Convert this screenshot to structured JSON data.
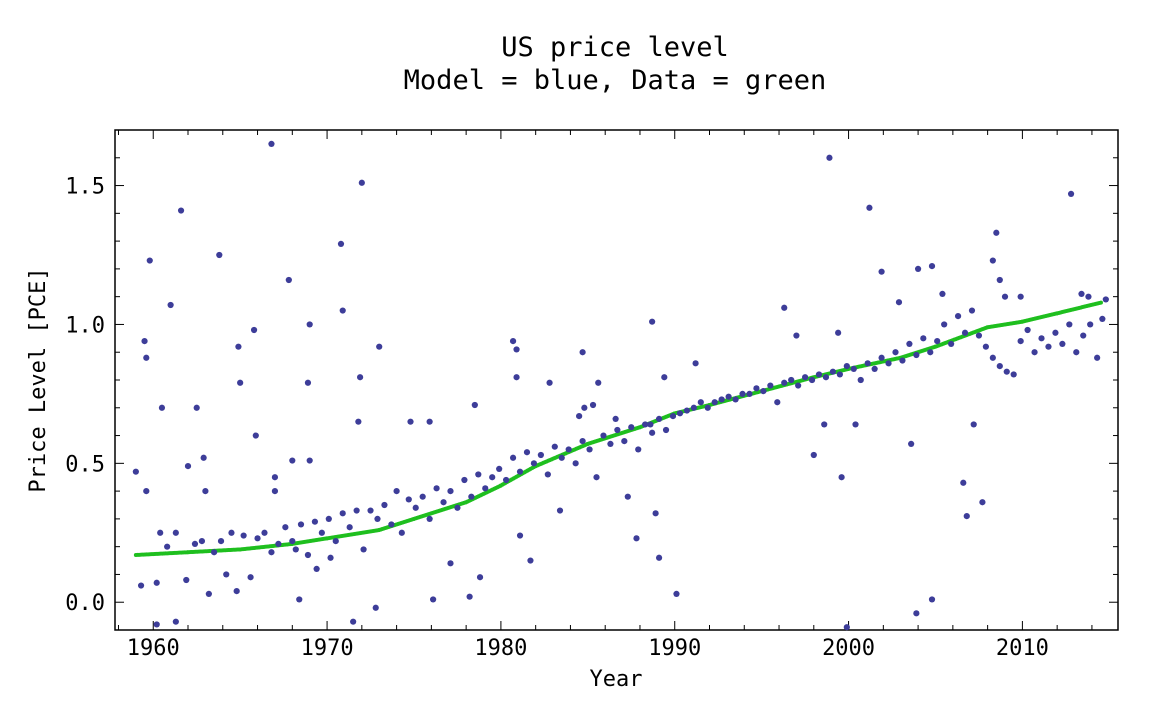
{
  "chart_data": {
    "type": "scatter",
    "title": "US price level",
    "subtitle": "Model = blue, Data = green",
    "xlabel": "Year",
    "ylabel": "Price Level [PCE]",
    "xlim": [
      1957.8,
      2015.5
    ],
    "ylim": [
      -0.1,
      1.7
    ],
    "x_ticks": [
      1960,
      1970,
      1980,
      1990,
      2000,
      2010
    ],
    "x_tick_labels": [
      "1960",
      "1970",
      "1980",
      "1990",
      "2000",
      "2010"
    ],
    "y_ticks": [
      0.0,
      0.5,
      1.0,
      1.5
    ],
    "y_tick_labels": [
      "0.0",
      "0.5",
      "1.0",
      "1.5"
    ],
    "grid": false,
    "colors": {
      "model": "#3d3d99",
      "data": "#1fbf1f"
    },
    "series": [
      {
        "style": "points",
        "color": "#3d3d99",
        "points": [
          [
            1959.0,
            0.47
          ],
          [
            1959.5,
            0.94
          ],
          [
            1959.6,
            0.88
          ],
          [
            1959.8,
            1.23
          ],
          [
            1959.6,
            0.4
          ],
          [
            1960.5,
            0.7
          ],
          [
            1961.0,
            1.07
          ],
          [
            1961.6,
            1.41
          ],
          [
            1962.0,
            0.49
          ],
          [
            1962.5,
            0.7
          ],
          [
            1962.9,
            0.52
          ],
          [
            1963.0,
            0.4
          ],
          [
            1963.8,
            1.25
          ],
          [
            1964.9,
            0.92
          ],
          [
            1965.0,
            0.79
          ],
          [
            1965.9,
            0.6
          ],
          [
            1965.8,
            0.98
          ],
          [
            1966.8,
            1.65
          ],
          [
            1967.0,
            0.45
          ],
          [
            1967.0,
            0.4
          ],
          [
            1967.8,
            1.16
          ],
          [
            1968.0,
            0.51
          ],
          [
            1969.0,
            1.0
          ],
          [
            1968.9,
            0.79
          ],
          [
            1969.0,
            0.51
          ],
          [
            1970.8,
            1.29
          ],
          [
            1970.9,
            1.05
          ],
          [
            1972.0,
            1.51
          ],
          [
            1971.9,
            0.81
          ],
          [
            1971.8,
            0.65
          ],
          [
            1973.0,
            0.92
          ],
          [
            1972.8,
            -0.02
          ],
          [
            1968.2,
            0.19
          ],
          [
            1968.4,
            0.01
          ],
          [
            1969.4,
            0.12
          ],
          [
            1970.2,
            0.16
          ],
          [
            1971.5,
            -0.07
          ],
          [
            1960.2,
            -0.08
          ],
          [
            1961.3,
            -0.07
          ],
          [
            1960.2,
            0.07
          ],
          [
            1974.8,
            0.65
          ],
          [
            1975.9,
            0.65
          ],
          [
            1977.1,
            0.14
          ],
          [
            1976.1,
            0.01
          ],
          [
            1978.2,
            0.02
          ],
          [
            1978.5,
            0.71
          ],
          [
            1978.8,
            0.09
          ],
          [
            1980.7,
            0.94
          ],
          [
            1980.9,
            0.91
          ],
          [
            1980.9,
            0.81
          ],
          [
            1981.1,
            0.24
          ],
          [
            1981.7,
            0.15
          ],
          [
            1982.8,
            0.79
          ],
          [
            1983.4,
            0.33
          ],
          [
            1984.5,
            0.67
          ],
          [
            1984.7,
            0.9
          ],
          [
            1984.8,
            0.7
          ],
          [
            1985.3,
            0.71
          ],
          [
            1985.6,
            0.79
          ],
          [
            1986.6,
            0.66
          ],
          [
            1987.3,
            0.38
          ],
          [
            1987.8,
            0.23
          ],
          [
            1988.6,
            0.64
          ],
          [
            1988.7,
            1.01
          ],
          [
            1989.1,
            0.16
          ],
          [
            1988.9,
            0.32
          ],
          [
            1990.1,
            0.03
          ],
          [
            1989.4,
            0.81
          ],
          [
            1991.2,
            0.86
          ],
          [
            1996.3,
            1.06
          ],
          [
            1997.0,
            0.96
          ],
          [
            1998.0,
            0.53
          ],
          [
            1998.6,
            0.64
          ],
          [
            1998.9,
            1.6
          ],
          [
            1999.4,
            0.97
          ],
          [
            1999.6,
            0.45
          ],
          [
            1999.9,
            -0.09
          ],
          [
            2000.4,
            0.64
          ],
          [
            2001.2,
            1.42
          ],
          [
            2001.9,
            1.19
          ],
          [
            2002.9,
            1.08
          ],
          [
            2003.6,
            0.57
          ],
          [
            2003.9,
            -0.04
          ],
          [
            2004.8,
            0.01
          ],
          [
            2004.8,
            1.21
          ],
          [
            2004.0,
            1.2
          ],
          [
            2005.4,
            1.11
          ],
          [
            2006.6,
            0.43
          ],
          [
            2006.8,
            0.31
          ],
          [
            2007.2,
            0.64
          ],
          [
            2007.7,
            0.36
          ],
          [
            2008.3,
            1.23
          ],
          [
            2008.5,
            1.33
          ],
          [
            2008.7,
            1.16
          ],
          [
            2009.0,
            1.1
          ],
          [
            2009.9,
            1.1
          ],
          [
            2012.8,
            1.47
          ],
          [
            2013.4,
            1.11
          ],
          [
            2013.8,
            1.1
          ],
          [
            1959.3,
            0.06
          ],
          [
            1960.4,
            0.25
          ],
          [
            1960.8,
            0.2
          ],
          [
            1961.3,
            0.25
          ],
          [
            1961.9,
            0.08
          ],
          [
            1962.4,
            0.21
          ],
          [
            1962.8,
            0.22
          ],
          [
            1963.2,
            0.03
          ],
          [
            1963.5,
            0.18
          ],
          [
            1963.9,
            0.22
          ],
          [
            1964.2,
            0.1
          ],
          [
            1964.5,
            0.25
          ],
          [
            1964.8,
            0.04
          ],
          [
            1965.2,
            0.24
          ],
          [
            1965.6,
            0.09
          ],
          [
            1966.0,
            0.23
          ],
          [
            1966.4,
            0.25
          ],
          [
            1966.8,
            0.18
          ],
          [
            1967.2,
            0.21
          ],
          [
            1967.6,
            0.27
          ],
          [
            1968.0,
            0.22
          ],
          [
            1968.5,
            0.28
          ],
          [
            1968.9,
            0.17
          ],
          [
            1969.3,
            0.29
          ],
          [
            1969.7,
            0.25
          ],
          [
            1970.1,
            0.3
          ],
          [
            1970.5,
            0.22
          ],
          [
            1970.9,
            0.32
          ],
          [
            1971.3,
            0.27
          ],
          [
            1971.7,
            0.33
          ],
          [
            1972.1,
            0.19
          ],
          [
            1972.5,
            0.33
          ],
          [
            1972.9,
            0.3
          ],
          [
            1973.3,
            0.35
          ],
          [
            1973.7,
            0.28
          ],
          [
            1974.0,
            0.4
          ],
          [
            1974.3,
            0.25
          ],
          [
            1974.7,
            0.37
          ],
          [
            1975.1,
            0.34
          ],
          [
            1975.5,
            0.38
          ],
          [
            1975.9,
            0.3
          ],
          [
            1976.3,
            0.41
          ],
          [
            1976.7,
            0.36
          ],
          [
            1977.1,
            0.4
          ],
          [
            1977.5,
            0.34
          ],
          [
            1977.9,
            0.44
          ],
          [
            1978.3,
            0.38
          ],
          [
            1978.7,
            0.46
          ],
          [
            1979.1,
            0.41
          ],
          [
            1979.5,
            0.45
          ],
          [
            1979.9,
            0.48
          ],
          [
            1980.3,
            0.44
          ],
          [
            1980.7,
            0.52
          ],
          [
            1981.1,
            0.47
          ],
          [
            1981.5,
            0.54
          ],
          [
            1981.9,
            0.5
          ],
          [
            1982.3,
            0.53
          ],
          [
            1982.7,
            0.46
          ],
          [
            1983.1,
            0.56
          ],
          [
            1983.5,
            0.52
          ],
          [
            1983.9,
            0.55
          ],
          [
            1984.3,
            0.5
          ],
          [
            1984.7,
            0.58
          ],
          [
            1985.1,
            0.55
          ],
          [
            1985.5,
            0.45
          ],
          [
            1985.9,
            0.6
          ],
          [
            1986.3,
            0.57
          ],
          [
            1986.7,
            0.62
          ],
          [
            1987.1,
            0.58
          ],
          [
            1987.5,
            0.63
          ],
          [
            1987.9,
            0.55
          ],
          [
            1988.3,
            0.64
          ],
          [
            1988.7,
            0.61
          ],
          [
            1989.1,
            0.66
          ],
          [
            1989.5,
            0.62
          ],
          [
            1989.9,
            0.67
          ],
          [
            1990.3,
            0.68
          ],
          [
            1990.7,
            0.69
          ],
          [
            1991.1,
            0.7
          ],
          [
            1991.5,
            0.72
          ],
          [
            1991.9,
            0.7
          ],
          [
            1992.3,
            0.72
          ],
          [
            1992.7,
            0.73
          ],
          [
            1993.1,
            0.74
          ],
          [
            1993.5,
            0.73
          ],
          [
            1993.9,
            0.75
          ],
          [
            1994.3,
            0.75
          ],
          [
            1994.7,
            0.77
          ],
          [
            1995.1,
            0.76
          ],
          [
            1995.5,
            0.78
          ],
          [
            1995.9,
            0.72
          ],
          [
            1996.3,
            0.79
          ],
          [
            1996.7,
            0.8
          ],
          [
            1997.1,
            0.78
          ],
          [
            1997.5,
            0.81
          ],
          [
            1997.9,
            0.8
          ],
          [
            1998.3,
            0.82
          ],
          [
            1998.7,
            0.81
          ],
          [
            1999.1,
            0.83
          ],
          [
            1999.5,
            0.82
          ],
          [
            1999.9,
            0.85
          ],
          [
            2000.3,
            0.84
          ],
          [
            2000.7,
            0.8
          ],
          [
            2001.1,
            0.86
          ],
          [
            2001.5,
            0.84
          ],
          [
            2001.9,
            0.88
          ],
          [
            2002.3,
            0.86
          ],
          [
            2002.7,
            0.9
          ],
          [
            2003.1,
            0.87
          ],
          [
            2003.5,
            0.93
          ],
          [
            2003.9,
            0.89
          ],
          [
            2004.3,
            0.95
          ],
          [
            2004.7,
            0.9
          ],
          [
            2005.1,
            0.94
          ],
          [
            2005.5,
            1.0
          ],
          [
            2005.9,
            0.93
          ],
          [
            2006.3,
            1.03
          ],
          [
            2006.7,
            0.97
          ],
          [
            2007.1,
            1.05
          ],
          [
            2007.5,
            0.96
          ],
          [
            2007.9,
            0.92
          ],
          [
            2008.3,
            0.88
          ],
          [
            2008.7,
            0.85
          ],
          [
            2009.1,
            0.83
          ],
          [
            2009.5,
            0.82
          ],
          [
            2009.9,
            0.94
          ],
          [
            2010.3,
            0.98
          ],
          [
            2010.7,
            0.9
          ],
          [
            2011.1,
            0.95
          ],
          [
            2011.5,
            0.92
          ],
          [
            2011.9,
            0.97
          ],
          [
            2012.3,
            0.93
          ],
          [
            2012.7,
            1.0
          ],
          [
            2013.1,
            0.9
          ],
          [
            2013.5,
            0.96
          ],
          [
            2013.9,
            1.0
          ],
          [
            2014.3,
            0.88
          ],
          [
            2014.6,
            1.02
          ],
          [
            2014.8,
            1.09
          ]
        ]
      },
      {
        "style": "dotted-line",
        "color": "#1fbf1f",
        "points": [
          [
            1959.0,
            0.17
          ],
          [
            1962.0,
            0.18
          ],
          [
            1965.0,
            0.19
          ],
          [
            1968.0,
            0.21
          ],
          [
            1970.0,
            0.23
          ],
          [
            1973.0,
            0.26
          ],
          [
            1975.0,
            0.3
          ],
          [
            1978.0,
            0.36
          ],
          [
            1980.0,
            0.42
          ],
          [
            1982.0,
            0.49
          ],
          [
            1985.0,
            0.57
          ],
          [
            1988.0,
            0.63
          ],
          [
            1990.0,
            0.68
          ],
          [
            1992.0,
            0.71
          ],
          [
            1995.0,
            0.76
          ],
          [
            1998.0,
            0.81
          ],
          [
            2000.0,
            0.84
          ],
          [
            2003.0,
            0.88
          ],
          [
            2005.0,
            0.92
          ],
          [
            2008.0,
            0.99
          ],
          [
            2010.0,
            1.01
          ],
          [
            2012.0,
            1.04
          ],
          [
            2014.6,
            1.08
          ]
        ]
      }
    ]
  }
}
